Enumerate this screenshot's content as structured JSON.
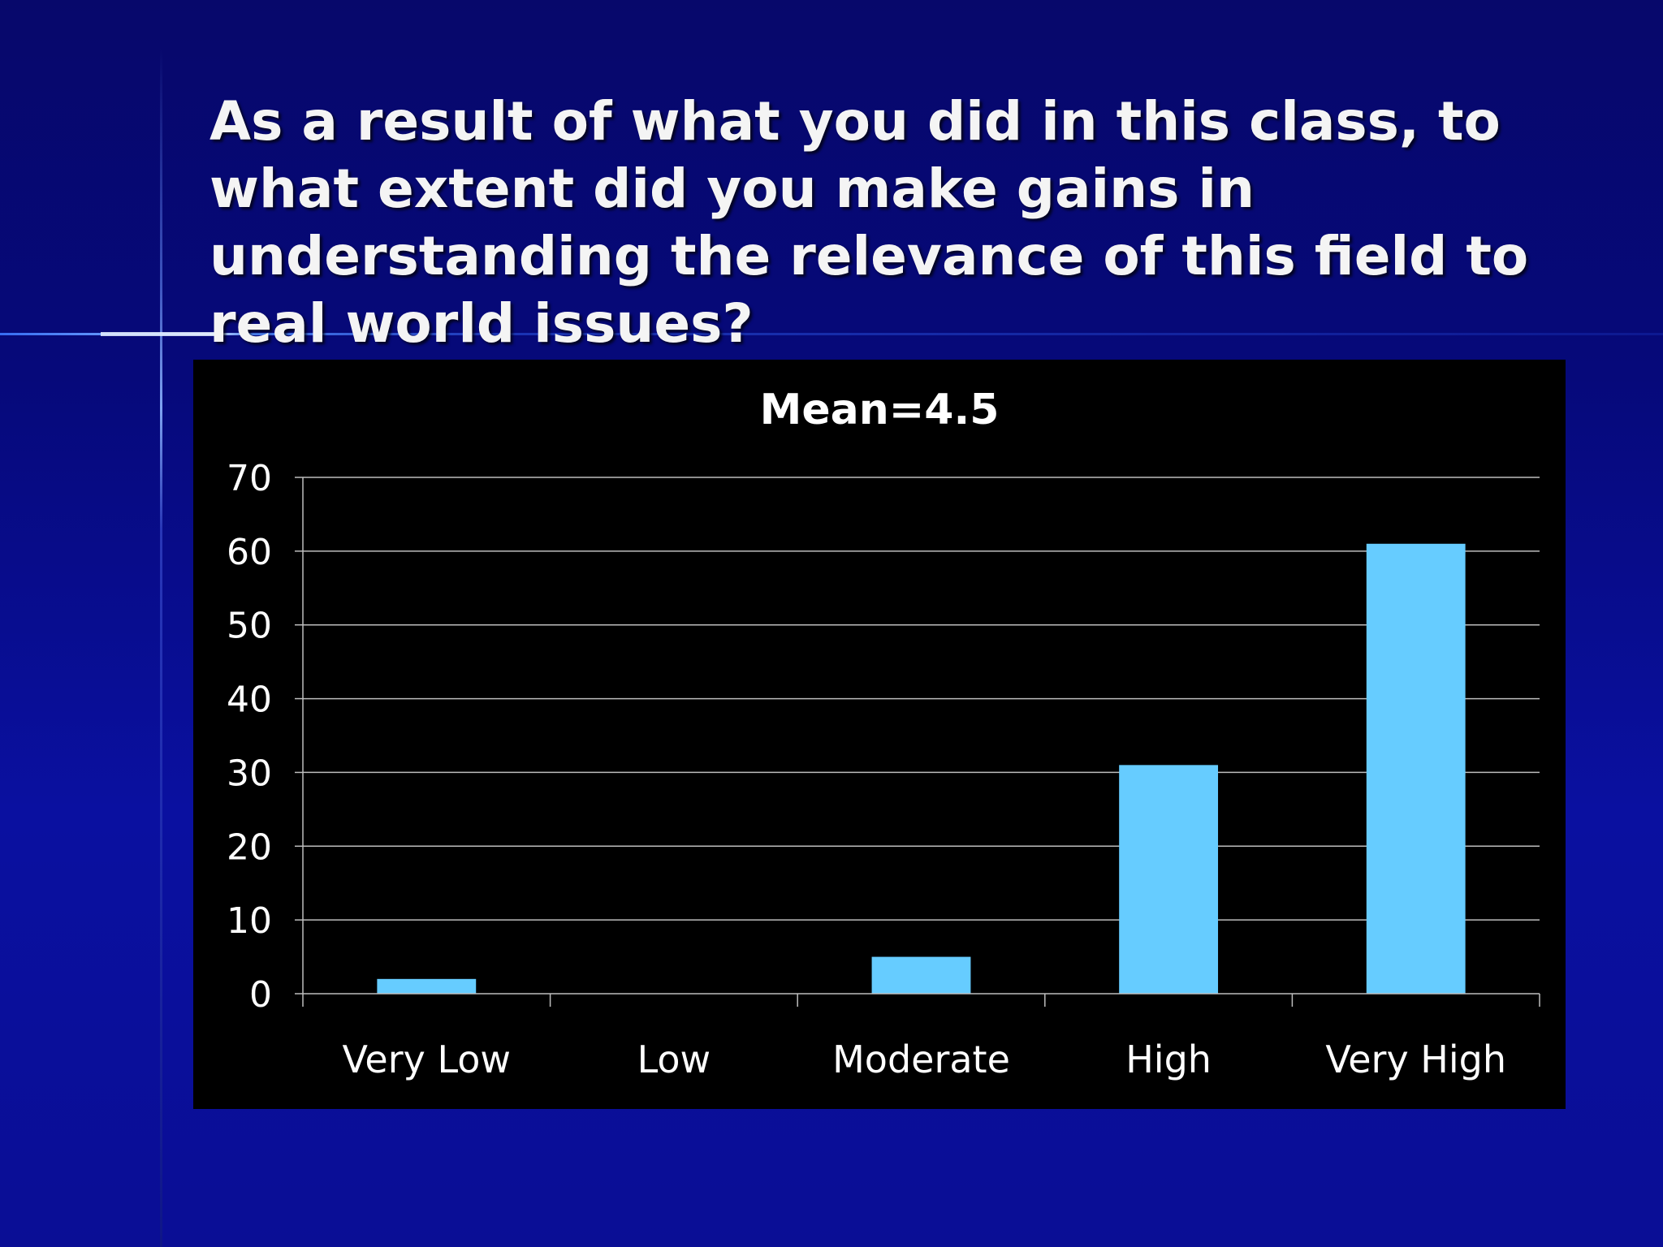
{
  "slide": {
    "title": "As a result of what you did in this class, to what extent did you make gains in understanding the relevance of this field to real world issues?"
  },
  "colors": {
    "background": "#07086b",
    "bar": "#66ccff",
    "chart_background": "#000000",
    "text": "#ffffff"
  },
  "chart_data": {
    "type": "bar",
    "title": "Mean=4.5",
    "categories": [
      "Very Low",
      "Low",
      "Moderate",
      "High",
      "Very High"
    ],
    "values": [
      2,
      0,
      5,
      31,
      61
    ],
    "ylim": [
      0,
      70
    ],
    "yticks": [
      0,
      10,
      20,
      30,
      40,
      50,
      60,
      70
    ],
    "xlabel": "",
    "ylabel": "",
    "grid": true,
    "legend": "none"
  }
}
